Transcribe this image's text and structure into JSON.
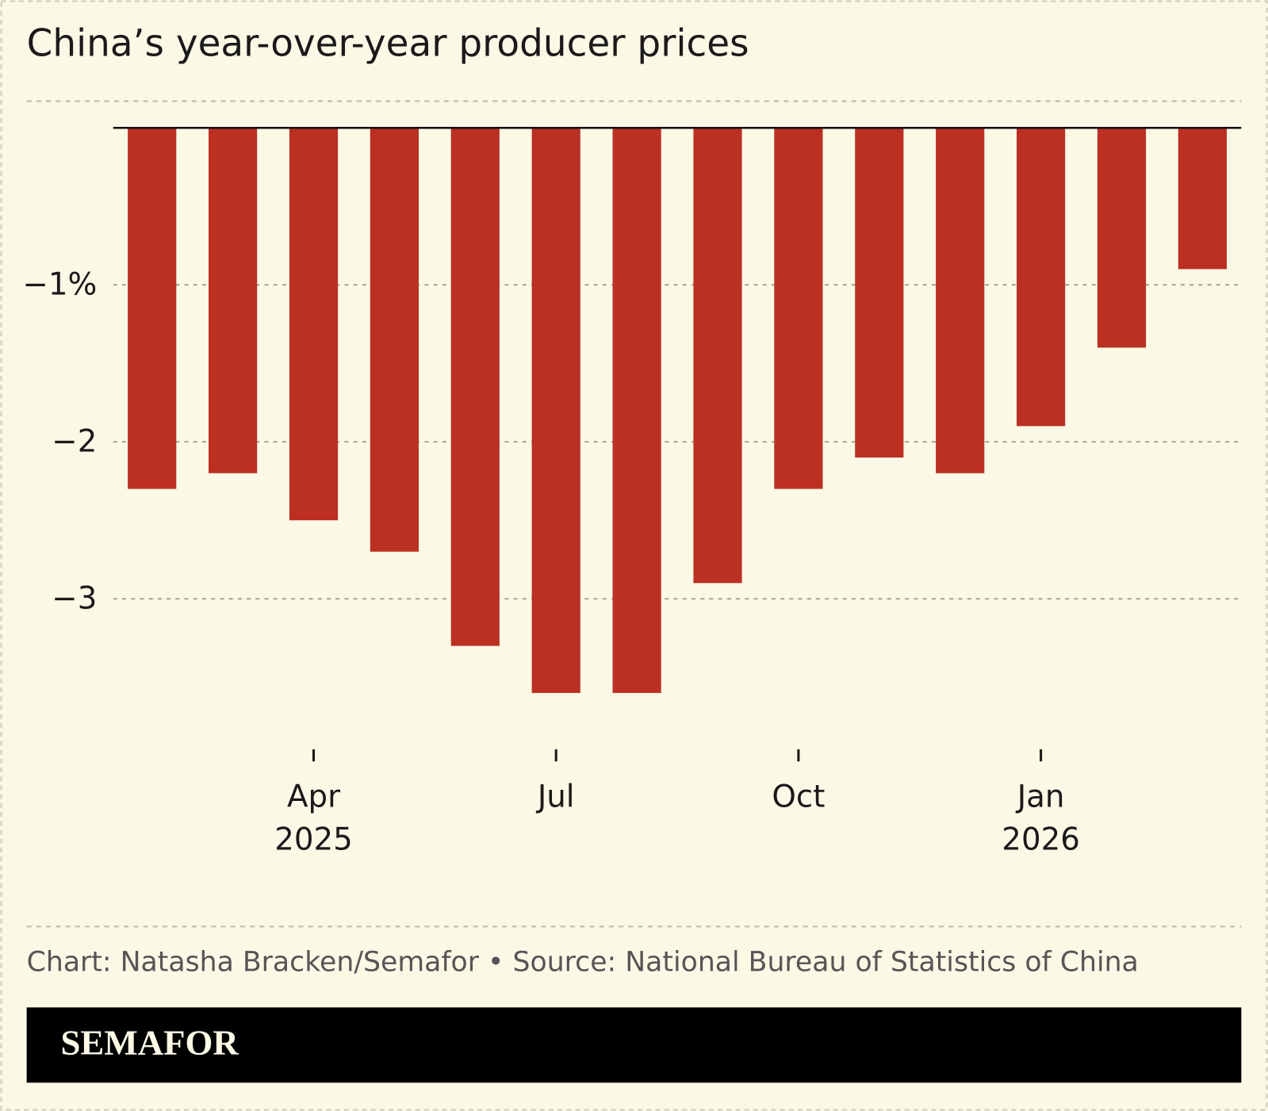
{
  "chart_data": {
    "type": "bar",
    "title": "China’s year-over-year producer prices",
    "categories": [
      null,
      null,
      "Apr",
      null,
      null,
      "Jul",
      null,
      null,
      "Oct",
      null,
      null,
      "Jan",
      null,
      null
    ],
    "category_years": [
      null,
      null,
      "2025",
      null,
      null,
      null,
      null,
      null,
      null,
      null,
      null,
      "2026",
      null,
      null
    ],
    "values": [
      -2.3,
      -2.2,
      -2.5,
      -2.7,
      -3.3,
      -3.6,
      -3.6,
      -2.9,
      -2.3,
      -2.1,
      -2.2,
      -1.9,
      -1.4,
      -0.9
    ],
    "color": "#bb3022",
    "ylim": [
      -4,
      0
    ],
    "yticks": [
      {
        "value": -1,
        "label": "−1%"
      },
      {
        "value": -2,
        "label": "−2"
      },
      {
        "value": -3,
        "label": "−3"
      }
    ],
    "grid": true,
    "source": "Chart: Natasha Bracken/Semafor • Source: National Bureau of Statistics of China",
    "logo": "SEMAFOR"
  }
}
